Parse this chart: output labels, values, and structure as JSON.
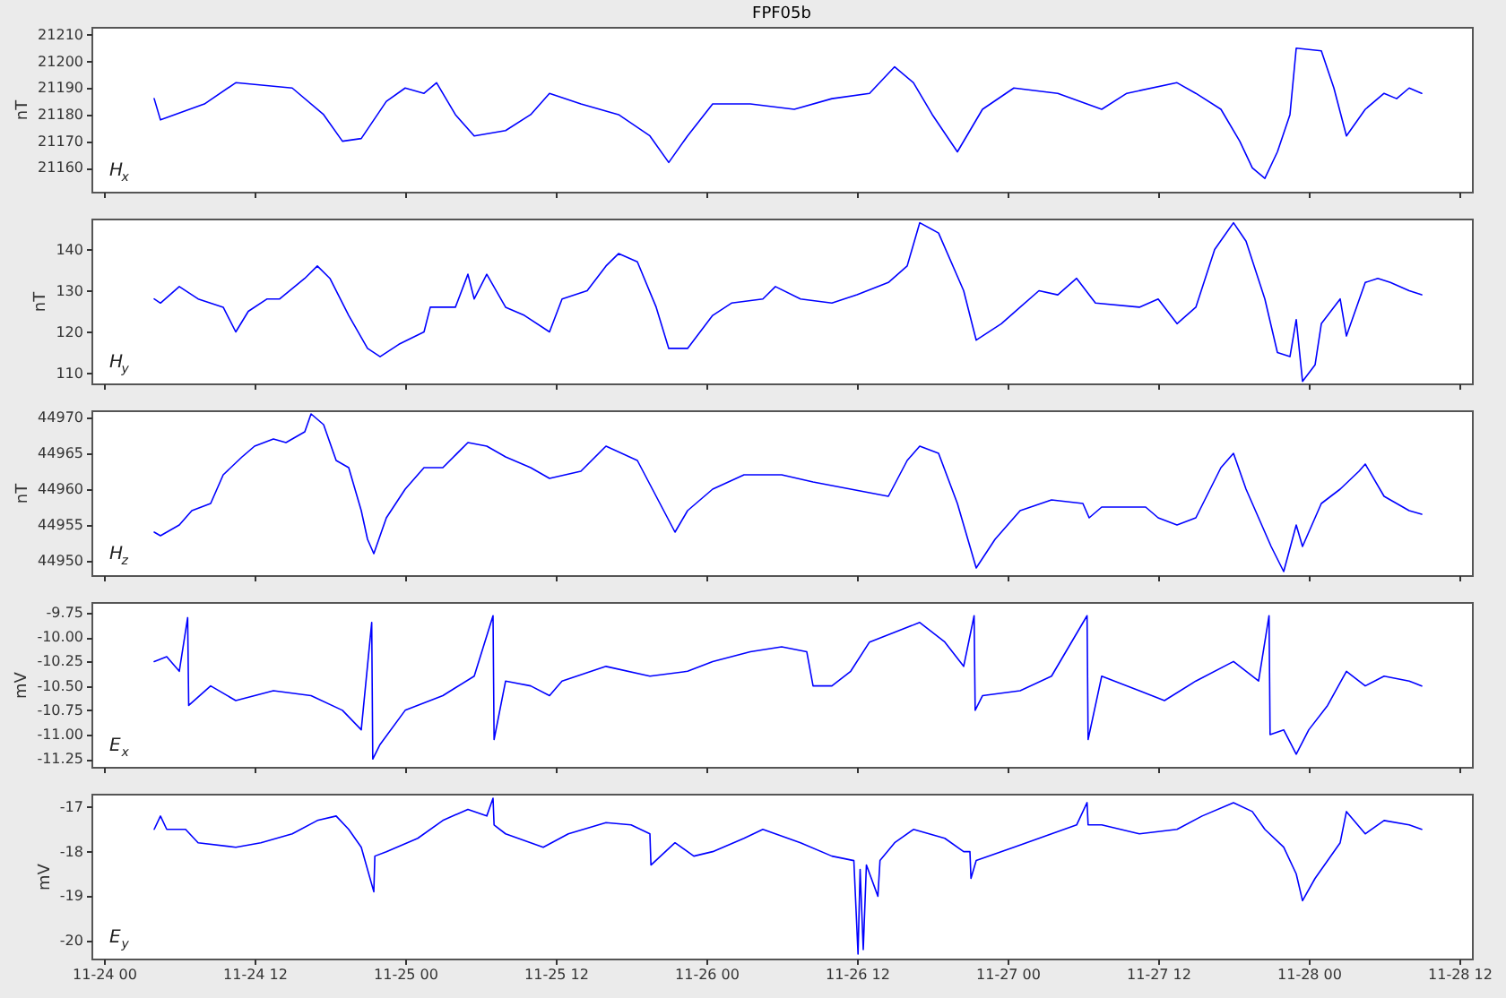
{
  "chart_data": [
    {
      "type": "line",
      "title": "FPF05b",
      "ylabel": "nT",
      "annotations": [
        "H$_{x}$"
      ],
      "tick_labels": "y",
      "xlim": [
        "--11-23T23:00",
        "--11-28T13:00"
      ],
      "xticks": [
        {
          "value": "--11-24T00:00",
          "label": "11-24 00"
        },
        {
          "value": "--11-24T12:00",
          "label": "11-24 12"
        },
        {
          "value": "--11-25T00:00",
          "label": "11-25 00"
        },
        {
          "value": "--11-25T12:00",
          "label": "11-25 12"
        },
        {
          "value": "--11-26T00:00",
          "label": "11-26 00"
        },
        {
          "value": "--11-26T12:00",
          "label": "11-26 12"
        },
        {
          "value": "--11-27T00:00",
          "label": "11-27 00"
        },
        {
          "value": "--11-27T12:00",
          "label": "11-27 12"
        },
        {
          "value": "--11-28T00:00",
          "label": "11-28 00"
        },
        {
          "value": "--11-28T12:00",
          "label": "11-28 12"
        }
      ],
      "ylim": [
        21151,
        21213
      ],
      "yticks": [
        21160,
        21170,
        21180,
        21190,
        21200,
        21210
      ],
      "series": [
        {
          "color": "#0000ff",
          "x": [
            "--11-24T04:00",
            "--11-24T04:30",
            "--11-24T08:00",
            "--11-24T10:30",
            "--11-24T15:00",
            "--11-24T17:30",
            "--11-24T19:00",
            "--11-24T20:30",
            "--11-24T22:30",
            "--11-25T00:00",
            "--11-25T01:30",
            "--11-25T02:30",
            "--11-25T04:00",
            "--11-25T05:30",
            "--11-25T08:00",
            "--11-25T10:00",
            "--11-25T11:30",
            "--11-25T14:00",
            "--11-25T17:00",
            "--11-25T19:30",
            "--11-25T21:00",
            "--11-25T22:30",
            "--11-26T00:30",
            "--11-26T03:30",
            "--11-26T07:00",
            "--11-26T10:00",
            "--11-26T13:00",
            "--11-26T15:00",
            "--11-26T16:30",
            "--11-26T18:00",
            "--11-26T20:00",
            "--11-26T22:00",
            "--11-27T00:30",
            "--11-27T04:00",
            "--11-27T07:30",
            "--11-27T09:30",
            "--11-27T13:30",
            "--11-27T15:00",
            "--11-27T17:00",
            "--11-27T18:30",
            "--11-27T19:30",
            "--11-27T20:30",
            "--11-27T21:30",
            "--11-27T22:30",
            "--11-27T23:00",
            "--11-28T01:00",
            "--11-28T02:00",
            "--11-28T03:00",
            "--11-28T04:30",
            "--11-28T06:00",
            "--11-28T07:00",
            "--11-28T08:00",
            "--11-28T09:00"
          ],
          "values": [
            21186,
            21178,
            21184,
            21192,
            21190,
            21180,
            21170,
            21171,
            21185,
            21190,
            21188,
            21192,
            21180,
            21172,
            21174,
            21180,
            21188,
            21184,
            21180,
            21172,
            21162,
            21172,
            21184,
            21184,
            21182,
            21186,
            21188,
            21198,
            21192,
            21180,
            21166,
            21182,
            21190,
            21188,
            21182,
            21188,
            21192,
            21188,
            21182,
            21170,
            21160,
            21156,
            21166,
            21180,
            21205,
            21204,
            21190,
            21172,
            21182,
            21188,
            21186,
            21190,
            21188
          ]
        }
      ]
    },
    {
      "type": "line",
      "ylabel": "nT",
      "annotations": [
        "H$_{y}$"
      ],
      "tick_labels": "y",
      "xlim": [
        "--11-23T23:00",
        "--11-28T13:00"
      ],
      "xticks": [
        {
          "value": "--11-24T00:00",
          "label": "11-24 00"
        },
        {
          "value": "--11-24T12:00",
          "label": "11-24 12"
        },
        {
          "value": "--11-25T00:00",
          "label": "11-25 00"
        },
        {
          "value": "--11-25T12:00",
          "label": "11-25 12"
        },
        {
          "value": "--11-26T00:00",
          "label": "11-26 00"
        },
        {
          "value": "--11-26T12:00",
          "label": "11-26 12"
        },
        {
          "value": "--11-27T00:00",
          "label": "11-27 00"
        },
        {
          "value": "--11-27T12:00",
          "label": "11-27 12"
        },
        {
          "value": "--11-28T00:00",
          "label": "11-28 00"
        },
        {
          "value": "--11-28T12:00",
          "label": "11-28 12"
        }
      ],
      "ylim": [
        107.5,
        147.5
      ],
      "yticks": [
        110,
        120,
        130,
        140
      ],
      "series": [
        {
          "color": "#0000ff",
          "x": [
            "--11-24T04:00",
            "--11-24T04:30",
            "--11-24T06:00",
            "--11-24T07:30",
            "--11-24T09:30",
            "--11-24T10:30",
            "--11-24T11:30",
            "--11-24T13:00",
            "--11-24T14:00",
            "--11-24T16:00",
            "--11-24T17:00",
            "--11-24T18:00",
            "--11-24T19:30",
            "--11-24T21:00",
            "--11-24T22:00",
            "--11-24T23:30",
            "--11-25T01:30",
            "--11-25T02:00",
            "--11-25T04:00",
            "--11-25T05:00",
            "--11-25T05:30",
            "--11-25T06:30",
            "--11-25T08:00",
            "--11-25T09:30",
            "--11-25T11:30",
            "--11-25T12:30",
            "--11-25T14:30",
            "--11-25T16:00",
            "--11-25T17:00",
            "--11-25T18:30",
            "--11-25T20:00",
            "--11-25T21:00",
            "--11-25T22:30",
            "--11-26T00:30",
            "--11-26T02:00",
            "--11-26T04:30",
            "--11-26T05:30",
            "--11-26T07:30",
            "--11-26T10:00",
            "--11-26T12:00",
            "--11-26T14:30",
            "--11-26T16:00",
            "--11-26T17:00",
            "--11-26T18:30",
            "--11-26T20:30",
            "--11-26T21:30",
            "--11-26T23:30",
            "--11-27T01:00",
            "--11-27T02:30",
            "--11-27T04:00",
            "--11-27T05:30",
            "--11-27T07:00",
            "--11-27T10:30",
            "--11-27T12:00",
            "--11-27T13:30",
            "--11-27T15:00",
            "--11-27T16:30",
            "--11-27T18:00",
            "--11-27T19:00",
            "--11-27T20:30",
            "--11-27T21:30",
            "--11-27T22:30",
            "--11-27T23:00",
            "--11-27T23:30",
            "--11-28T00:30",
            "--11-28T01:00",
            "--11-28T02:30",
            "--11-28T03:00",
            "--11-28T04:30",
            "--11-28T05:30",
            "--11-28T06:30",
            "--11-28T08:00",
            "--11-28T09:00"
          ],
          "values": [
            128,
            127,
            131,
            128,
            126,
            120,
            125,
            128,
            128,
            133,
            136,
            133,
            124,
            116,
            114,
            117,
            120,
            126,
            126,
            134,
            128,
            134,
            126,
            124,
            120,
            128,
            130,
            136,
            139,
            137,
            126,
            116,
            116,
            124,
            127,
            128,
            131,
            128,
            127,
            129,
            132,
            136,
            146.5,
            144,
            130,
            118,
            122,
            126,
            130,
            129,
            133,
            127,
            126,
            128,
            122,
            126,
            140,
            146.5,
            142,
            128,
            115,
            114,
            123,
            108,
            112,
            122,
            128,
            119,
            132,
            133,
            132,
            130,
            129
          ]
        }
      ]
    },
    {
      "type": "line",
      "ylabel": "nT",
      "annotations": [
        "H$_{z}$"
      ],
      "tick_labels": "y",
      "xlim": [
        "--11-23T23:00",
        "--11-28T13:00"
      ],
      "xticks": [
        {
          "value": "--11-24T00:00",
          "label": "11-24 00"
        },
        {
          "value": "--11-24T12:00",
          "label": "11-24 12"
        },
        {
          "value": "--11-25T00:00",
          "label": "11-25 00"
        },
        {
          "value": "--11-25T12:00",
          "label": "11-25 12"
        },
        {
          "value": "--11-26T00:00",
          "label": "11-26 00"
        },
        {
          "value": "--11-26T12:00",
          "label": "11-26 12"
        },
        {
          "value": "--11-27T00:00",
          "label": "11-27 00"
        },
        {
          "value": "--11-27T12:00",
          "label": "11-27 12"
        },
        {
          "value": "--11-28T00:00",
          "label": "11-28 00"
        },
        {
          "value": "--11-28T12:00",
          "label": "11-28 12"
        }
      ],
      "ylim": [
        44948,
        44971
      ],
      "yticks": [
        44950,
        44955,
        44960,
        44965,
        44970
      ],
      "series": [
        {
          "color": "#0000ff",
          "x": [
            "--11-24T04:00",
            "--11-24T04:30",
            "--11-24T06:00",
            "--11-24T07:00",
            "--11-24T08:30",
            "--11-24T09:30",
            "--11-24T11:00",
            "--11-24T12:00",
            "--11-24T13:30",
            "--11-24T14:30",
            "--11-24T16:00",
            "--11-24T16:30",
            "--11-24T17:30",
            "--11-24T18:30",
            "--11-24T19:30",
            "--11-24T20:30",
            "--11-24T21:00",
            "--11-24T21:30",
            "--11-24T22:30",
            "--11-25T00:00",
            "--11-25T01:30",
            "--11-25T03:00",
            "--11-25T05:00",
            "--11-25T06:30",
            "--11-25T08:00",
            "--11-25T10:00",
            "--11-25T11:30",
            "--11-25T14:00",
            "--11-25T16:00",
            "--11-25T18:30",
            "--11-25T20:00",
            "--11-25T21:30",
            "--11-25T22:30",
            "--11-26T00:30",
            "--11-26T03:00",
            "--11-26T06:00",
            "--11-26T08:30",
            "--11-26T11:30",
            "--11-26T14:30",
            "--11-26T16:00",
            "--11-26T17:00",
            "--11-26T18:30",
            "--11-26T20:00",
            "--11-26T21:30",
            "--11-26T23:00",
            "--11-27T01:00",
            "--11-27T03:30",
            "--11-27T06:00",
            "--11-27T06:30",
            "--11-27T07:30",
            "--11-27T11:00",
            "--11-27T12:00",
            "--11-27T13:30",
            "--11-27T15:00",
            "--11-27T17:00",
            "--11-27T18:00",
            "--11-27T19:00",
            "--11-27T21:00",
            "--11-27T22:00",
            "--11-27T23:00",
            "--11-27T23:30",
            "--11-28T01:00",
            "--11-28T02:30",
            "--11-28T04:00",
            "--11-28T04:30",
            "--11-28T06:00",
            "--11-28T08:00",
            "--11-28T09:00"
          ],
          "values": [
            44954,
            44953.5,
            44955,
            44957,
            44958,
            44962,
            44964.5,
            44966,
            44967,
            44966.5,
            44968,
            44970.5,
            44969,
            44964,
            44963,
            44957,
            44953,
            44951,
            44956,
            44960,
            44963,
            44963,
            44966.5,
            44966,
            44964.5,
            44963,
            44961.5,
            44962.5,
            44966,
            44964,
            44959,
            44954,
            44957,
            44960,
            44962,
            44962,
            44961,
            44960,
            44959,
            44964,
            44966,
            44965,
            44958,
            44949,
            44953,
            44957,
            44958.5,
            44958,
            44956,
            44957.5,
            44957.5,
            44956,
            44955,
            44956,
            44963,
            44965,
            44960,
            44952,
            44948.5,
            44955,
            44952,
            44958,
            44960,
            44962.5,
            44963.5,
            44959,
            44957,
            44956.5
          ]
        }
      ]
    },
    {
      "type": "line",
      "ylabel": "mV",
      "annotations": [
        "E$_{x}$"
      ],
      "tick_labels": "y",
      "xlim": [
        "--11-23T23:00",
        "--11-28T13:00"
      ],
      "xticks": [
        {
          "value": "--11-24T00:00",
          "label": "11-24 00"
        },
        {
          "value": "--11-24T12:00",
          "label": "11-24 12"
        },
        {
          "value": "--11-25T00:00",
          "label": "11-25 00"
        },
        {
          "value": "--11-25T12:00",
          "label": "11-25 12"
        },
        {
          "value": "--11-26T00:00",
          "label": "11-26 00"
        },
        {
          "value": "--11-26T12:00",
          "label": "11-26 12"
        },
        {
          "value": "--11-27T00:00",
          "label": "11-27 00"
        },
        {
          "value": "--11-27T12:00",
          "label": "11-27 12"
        },
        {
          "value": "--11-28T00:00",
          "label": "11-28 00"
        },
        {
          "value": "--11-28T12:00",
          "label": "11-28 12"
        }
      ],
      "ylim": [
        -11.33,
        -9.64
      ],
      "yticks": [
        -9.75,
        {
          "value": -10,
          "label": "-10.00"
        },
        -10.25,
        {
          "value": -10.5,
          "label": "-10.50"
        },
        -10.75,
        {
          "value": -11,
          "label": "-11.00"
        },
        -11.25
      ],
      "series": [
        {
          "color": "#0000ff",
          "x": [
            "--11-24T04:00",
            "--11-24T05:00",
            "--11-24T06:00",
            "--11-24T06:40",
            "--11-24T06:45",
            "--11-24T08:30",
            "--11-24T10:30",
            "--11-24T13:30",
            "--11-24T16:30",
            "--11-24T19:00",
            "--11-24T20:30",
            "--11-24T21:20",
            "--11-24T21:25",
            "--11-24T22:00",
            "--11-25T00:00",
            "--11-25T03:00",
            "--11-25T05:30",
            "--11-25T07:00",
            "--11-25T07:05",
            "--11-25T08:00",
            "--11-25T10:00",
            "--11-25T11:30",
            "--11-25T12:30",
            "--11-25T16:00",
            "--11-25T19:30",
            "--11-25T22:30",
            "--11-26T00:30",
            "--11-26T03:30",
            "--11-26T06:00",
            "--11-26T08:00",
            "--11-26T08:30",
            "--11-26T10:00",
            "--11-26T11:30",
            "--11-26T13:00",
            "--11-26T15:00",
            "--11-26T17:00",
            "--11-26T19:00",
            "--11-26T20:30",
            "--11-26T21:20",
            "--11-26T21:25",
            "--11-26T22:00",
            "--11-27T01:00",
            "--11-27T03:30",
            "--11-27T06:20",
            "--11-27T06:25",
            "--11-27T07:30",
            "--11-27T10:30",
            "--11-27T12:30",
            "--11-27T15:00",
            "--11-27T18:00",
            "--11-27T20:00",
            "--11-27T20:50",
            "--11-27T20:55",
            "--11-27T22:00",
            "--11-27T23:00",
            "--11-28T00:00",
            "--11-28T01:30",
            "--11-28T03:00",
            "--11-28T04:30",
            "--11-28T06:00",
            "--11-28T08:00",
            "--11-28T09:00"
          ],
          "values": [
            -10.25,
            -10.2,
            -10.35,
            -9.8,
            -10.7,
            -10.5,
            -10.65,
            -10.55,
            -10.6,
            -10.75,
            -10.95,
            -9.85,
            -11.25,
            -11.1,
            -10.75,
            -10.6,
            -10.4,
            -9.78,
            -11.05,
            -10.45,
            -10.5,
            -10.6,
            -10.45,
            -10.3,
            -10.4,
            -10.35,
            -10.25,
            -10.15,
            -10.1,
            -10.15,
            -10.5,
            -10.5,
            -10.35,
            -10.05,
            -9.95,
            -9.85,
            -10.05,
            -10.3,
            -9.78,
            -10.75,
            -10.6,
            -10.55,
            -10.4,
            -9.78,
            -11.05,
            -10.4,
            -10.55,
            -10.65,
            -10.45,
            -10.25,
            -10.45,
            -9.78,
            -11.0,
            -10.95,
            -11.2,
            -10.95,
            -10.7,
            -10.35,
            -10.5,
            -10.4,
            -10.45,
            -10.5
          ]
        }
      ]
    },
    {
      "type": "line",
      "ylabel": "mV",
      "annotations": [
        "E$_{y}$"
      ],
      "xlim": [
        "--11-23T23:00",
        "--11-28T13:00"
      ],
      "xticks": [
        {
          "value": "--11-24T00:00",
          "label": "11-24 00"
        },
        {
          "value": "--11-24T12:00",
          "label": "11-24 12"
        },
        {
          "value": "--11-25T00:00",
          "label": "11-25 00"
        },
        {
          "value": "--11-25T12:00",
          "label": "11-25 12"
        },
        {
          "value": "--11-26T00:00",
          "label": "11-26 00"
        },
        {
          "value": "--11-26T12:00",
          "label": "11-26 12"
        },
        {
          "value": "--11-27T00:00",
          "label": "11-27 00"
        },
        {
          "value": "--11-27T12:00",
          "label": "11-27 12"
        },
        {
          "value": "--11-28T00:00",
          "label": "11-28 00"
        },
        {
          "value": "--11-28T12:00",
          "label": "11-28 12"
        }
      ],
      "ylim": [
        -20.4,
        -16.7
      ],
      "yticks": [
        -17,
        -18,
        -19,
        -20
      ],
      "series": [
        {
          "color": "#0000ff",
          "x": [
            "--11-24T04:00",
            "--11-24T04:30",
            "--11-24T05:00",
            "--11-24T06:30",
            "--11-24T07:30",
            "--11-24T10:30",
            "--11-24T12:30",
            "--11-24T15:00",
            "--11-24T17:00",
            "--11-24T18:30",
            "--11-24T19:30",
            "--11-24T20:30",
            "--11-24T21:30",
            "--11-24T21:35",
            "--11-24T22:30",
            "--11-25T01:00",
            "--11-25T03:00",
            "--11-25T05:00",
            "--11-25T06:30",
            "--11-25T07:00",
            "--11-25T07:05",
            "--11-25T08:00",
            "--11-25T11:00",
            "--11-25T13:00",
            "--11-25T16:00",
            "--11-25T18:00",
            "--11-25T19:30",
            "--11-25T19:35",
            "--11-25T21:30",
            "--11-25T23:00",
            "--11-26T00:30",
            "--11-26T03:00",
            "--11-26T04:30",
            "--11-26T07:30",
            "--11-26T10:00",
            "--11-26T11:45",
            "--11-26T12:05",
            "--11-26T12:15",
            "--11-26T12:30",
            "--11-26T12:45",
            "--11-26T13:40",
            "--11-26T13:50",
            "--11-26T15:00",
            "--11-26T16:30",
            "--11-26T19:00",
            "--11-26T20:30",
            "--11-26T21:00",
            "--11-26T21:05",
            "--11-26T21:30",
            "--11-27T00:30",
            "--11-27T03:30",
            "--11-27T05:30",
            "--11-27T06:20",
            "--11-27T06:25",
            "--11-27T07:30",
            "--11-27T10:30",
            "--11-27T13:30",
            "--11-27T15:30",
            "--11-27T18:00",
            "--11-27T19:30",
            "--11-27T20:30",
            "--11-27T22:00",
            "--11-27T23:00",
            "--11-27T23:30",
            "--11-28T00:30",
            "--11-28T02:30",
            "--11-28T03:00",
            "--11-28T04:30",
            "--11-28T06:00",
            "--11-28T08:00",
            "--11-28T09:00"
          ],
          "values": [
            -17.5,
            -17.2,
            -17.5,
            -17.5,
            -17.8,
            -17.9,
            -17.8,
            -17.6,
            -17.3,
            -17.2,
            -17.5,
            -17.9,
            -18.9,
            -18.1,
            -18.0,
            -17.7,
            -17.3,
            -17.05,
            -17.2,
            -16.8,
            -17.4,
            -17.6,
            -17.9,
            -17.6,
            -17.35,
            -17.4,
            -17.6,
            -18.3,
            -17.8,
            -18.1,
            -18.0,
            -17.7,
            -17.5,
            -17.8,
            -18.1,
            -18.2,
            -20.3,
            -18.4,
            -20.2,
            -18.3,
            -19.0,
            -18.2,
            -17.8,
            -17.5,
            -17.7,
            -18.0,
            -18.0,
            -18.6,
            -18.2,
            -17.9,
            -17.6,
            -17.4,
            -16.9,
            -17.4,
            -17.4,
            -17.6,
            -17.5,
            -17.2,
            -16.9,
            -17.1,
            -17.5,
            -17.9,
            -18.5,
            -19.1,
            -18.6,
            -17.8,
            -17.1,
            -17.6,
            -17.3,
            -17.4,
            -17.5
          ]
        }
      ]
    }
  ]
}
